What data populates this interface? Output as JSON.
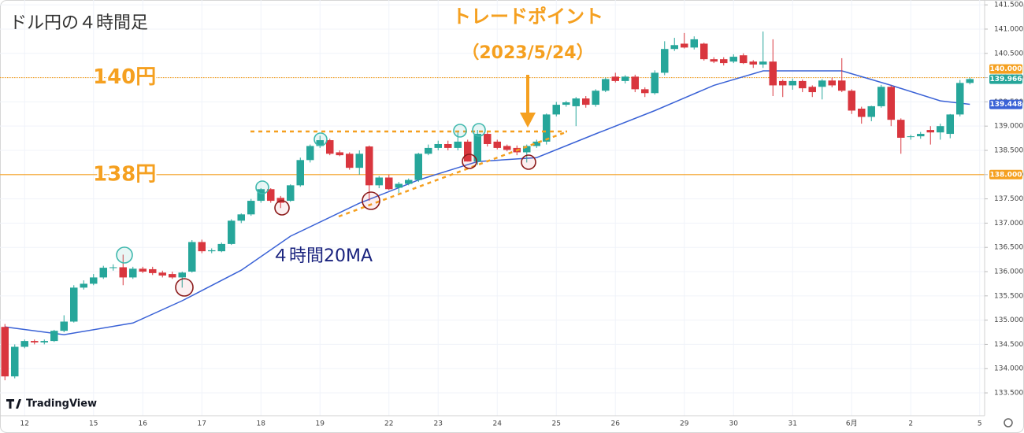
{
  "chart_data": {
    "type": "candlestick",
    "title": "ドル円の４時間足",
    "annotation_title": "トレードポイント",
    "annotation_date": "（2023/5/24）",
    "brand": "TradingView",
    "categories": [
      null,
      null,
      "12",
      null,
      null,
      null,
      null,
      null,
      null,
      "15",
      null,
      null,
      null,
      null,
      "16",
      null,
      null,
      null,
      null,
      null,
      "17",
      null,
      null,
      null,
      null,
      null,
      "18",
      null,
      null,
      null,
      null,
      null,
      "19",
      null,
      null,
      null,
      null,
      null,
      null,
      "22",
      null,
      null,
      null,
      null,
      "23",
      null,
      null,
      null,
      null,
      null,
      "24",
      null,
      null,
      null,
      null,
      null,
      "25",
      null,
      null,
      null,
      null,
      null,
      "26",
      null,
      null,
      null,
      null,
      null,
      null,
      "29",
      null,
      null,
      null,
      null,
      "30",
      null,
      null,
      null,
      null,
      null,
      "31",
      null,
      null,
      null,
      null,
      null,
      "6月",
      null,
      null,
      null,
      null,
      null,
      "2",
      null,
      null,
      null,
      null,
      null,
      null,
      "5"
    ],
    "open": [
      134.86,
      133.84,
      134.45,
      134.57,
      134.54,
      134.57,
      134.78,
      134.97,
      135.67,
      135.75,
      135.88,
      136.08,
      136.09,
      135.88,
      136.06,
      136.05,
      135.98,
      135.95,
      135.88,
      136.0,
      136.61,
      136.42,
      136.42,
      136.57,
      137.05,
      137.18,
      137.46,
      137.7,
      137.52,
      137.46,
      137.78,
      138.3,
      138.59,
      138.71,
      138.46,
      138.43,
      138.14,
      138.58,
      137.78,
      137.94,
      137.73,
      137.81,
      137.89,
      138.43,
      138.55,
      138.63,
      138.55,
      138.68,
      138.27,
      138.84,
      138.68,
      138.59,
      138.55,
      138.46,
      138.59,
      138.68,
      139.24,
      139.44,
      139.41,
      139.57,
      139.44,
      139.73,
      140.02,
      139.93,
      140.02,
      139.76,
      139.68,
      140.1,
      140.59,
      140.7,
      140.62,
      140.7,
      140.38,
      140.38,
      140.33,
      140.46,
      140.33,
      140.27,
      140.33,
      139.93,
      139.84,
      139.93,
      139.81,
      139.81,
      139.94,
      139.94,
      139.73,
      139.36,
      139.19,
      139.41,
      139.81,
      139.13,
      138.79,
      138.79,
      138.92,
      138.87,
      138.84,
      139.24,
      139.89,
      null
    ],
    "high": [
      134.92,
      134.5,
      134.6,
      134.6,
      134.6,
      134.8,
      135.1,
      135.72,
      135.82,
      135.95,
      136.12,
      136.15,
      136.35,
      136.1,
      136.1,
      136.1,
      136.02,
      136.0,
      136.0,
      136.65,
      136.66,
      136.48,
      136.6,
      137.08,
      137.2,
      137.5,
      137.72,
      137.72,
      137.56,
      137.8,
      138.35,
      138.62,
      138.8,
      138.74,
      138.5,
      138.46,
      138.5,
      138.6,
      137.97,
      138.0,
      137.85,
      137.92,
      138.45,
      138.62,
      138.7,
      138.7,
      138.9,
      138.72,
      138.92,
      138.88,
      138.72,
      138.62,
      138.6,
      138.62,
      138.72,
      139.26,
      139.5,
      139.52,
      139.6,
      139.62,
      139.76,
      140.0,
      140.1,
      140.05,
      140.06,
      139.8,
      140.15,
      140.75,
      140.82,
      140.92,
      140.85,
      140.72,
      140.42,
      140.42,
      140.48,
      140.5,
      140.36,
      140.95,
      140.79,
      139.96,
      139.98,
      139.96,
      139.84,
      139.97,
      140.0,
      140.4,
      139.76,
      139.4,
      139.42,
      139.85,
      139.84,
      139.16,
      138.82,
      138.88,
      139.0,
      139.05,
      139.25,
      139.95,
      140.0,
      null
    ],
    "low": [
      133.76,
      133.8,
      134.42,
      134.5,
      134.5,
      134.55,
      134.75,
      134.95,
      135.63,
      135.72,
      135.85,
      136.02,
      135.72,
      135.85,
      135.97,
      135.93,
      135.88,
      135.85,
      135.67,
      135.98,
      136.38,
      136.38,
      136.4,
      136.55,
      137.0,
      137.15,
      137.42,
      137.42,
      137.31,
      137.44,
      137.75,
      138.25,
      138.55,
      138.4,
      138.38,
      138.1,
      138.0,
      137.46,
      137.72,
      137.68,
      137.62,
      137.78,
      137.85,
      138.4,
      138.5,
      138.5,
      138.5,
      138.27,
      138.2,
      138.58,
      138.52,
      138.48,
      138.4,
      138.25,
      138.55,
      138.62,
      139.2,
      139.4,
      139.0,
      139.38,
      139.4,
      139.7,
      139.9,
      139.88,
      139.7,
      139.6,
      139.65,
      140.05,
      140.55,
      140.6,
      140.58,
      140.35,
      140.3,
      140.25,
      140.3,
      140.28,
      140.2,
      140.2,
      139.62,
      139.6,
      139.75,
      139.7,
      139.6,
      139.55,
      139.8,
      139.7,
      139.25,
      139.05,
      139.1,
      139.38,
      139.0,
      138.43,
      138.72,
      138.74,
      138.62,
      138.72,
      138.75,
      139.2,
      139.86,
      null
    ],
    "close": [
      133.84,
      134.45,
      134.57,
      134.54,
      134.57,
      134.78,
      134.97,
      135.67,
      135.75,
      135.88,
      136.08,
      136.09,
      135.88,
      136.06,
      136.0,
      135.97,
      135.92,
      135.88,
      135.98,
      136.61,
      136.42,
      136.44,
      136.57,
      137.05,
      137.18,
      137.46,
      137.7,
      137.46,
      137.42,
      137.78,
      138.3,
      138.59,
      138.71,
      138.43,
      138.4,
      138.14,
      138.43,
      137.78,
      137.94,
      137.7,
      137.81,
      137.89,
      138.43,
      138.55,
      138.63,
      138.55,
      138.68,
      138.27,
      138.84,
      138.63,
      138.55,
      138.51,
      138.46,
      138.59,
      138.68,
      139.24,
      139.44,
      139.49,
      139.57,
      139.44,
      139.73,
      139.97,
      139.93,
      140.02,
      139.76,
      139.68,
      140.1,
      140.59,
      140.67,
      140.62,
      140.79,
      140.38,
      140.33,
      140.3,
      140.43,
      140.3,
      140.27,
      140.33,
      139.84,
      139.84,
      139.93,
      139.78,
      139.7,
      139.94,
      139.84,
      139.73,
      139.32,
      139.19,
      139.41,
      139.81,
      139.13,
      138.76,
      138.79,
      138.84,
      138.87,
      139.0,
      139.24,
      139.89,
      139.97,
      null
    ],
    "up_color": "#26a69a",
    "down_color": "#d9363e",
    "ma": {
      "name": "４時間20MA",
      "color": "#3a62d6",
      "x": [
        0,
        6,
        13,
        18,
        24,
        29,
        36,
        42,
        48,
        54,
        60,
        66,
        72,
        77,
        85,
        90,
        95,
        98
      ],
      "values": [
        134.86,
        134.7,
        134.94,
        135.4,
        136.03,
        136.73,
        137.41,
        137.89,
        138.27,
        138.35,
        138.84,
        139.32,
        139.84,
        140.14,
        140.14,
        139.84,
        139.52,
        139.45
      ]
    },
    "levels": [
      {
        "value": 140,
        "label": "140円",
        "style": "dotted"
      },
      {
        "value": 138,
        "label": "138円",
        "style": "solid"
      }
    ],
    "level_color": "#f5a020",
    "price_tags": [
      {
        "value": 140,
        "label": "140.000",
        "color": "#f5a020"
      },
      {
        "value": 139.966,
        "label": "139.966",
        "color": "#26a69a"
      },
      {
        "value": 139.448,
        "label": "139.448",
        "color": "#3a62d6"
      },
      {
        "value": 138,
        "label": "138.000",
        "color": "#f5a020"
      }
    ],
    "ylim": [
      133.03,
      141.6
    ],
    "yticks": [
      {
        "value": 133.5,
        "label": "133.500"
      },
      {
        "value": 134,
        "label": "134.000"
      },
      {
        "value": 134.5,
        "label": "134.500"
      },
      {
        "value": 135,
        "label": "135.000"
      },
      {
        "value": 135.5,
        "label": "135.500"
      },
      {
        "value": 136,
        "label": "136.000"
      },
      {
        "value": 136.5,
        "label": "136.500"
      },
      {
        "value": 137,
        "label": "137.000"
      },
      {
        "value": 137.5,
        "label": "137.500"
      },
      {
        "value": 138,
        "label": "138.000"
      },
      {
        "value": 138.5,
        "label": "138.500"
      },
      {
        "value": 139,
        "label": "139.000"
      },
      {
        "value": 139.5,
        "label": "139.500"
      },
      {
        "value": 140,
        "label": "140.000"
      },
      {
        "value": 140.5,
        "label": "140.500"
      },
      {
        "value": 141,
        "label": "141.000"
      },
      {
        "value": 141.5,
        "label": "141.500"
      }
    ],
    "grid": true
  }
}
